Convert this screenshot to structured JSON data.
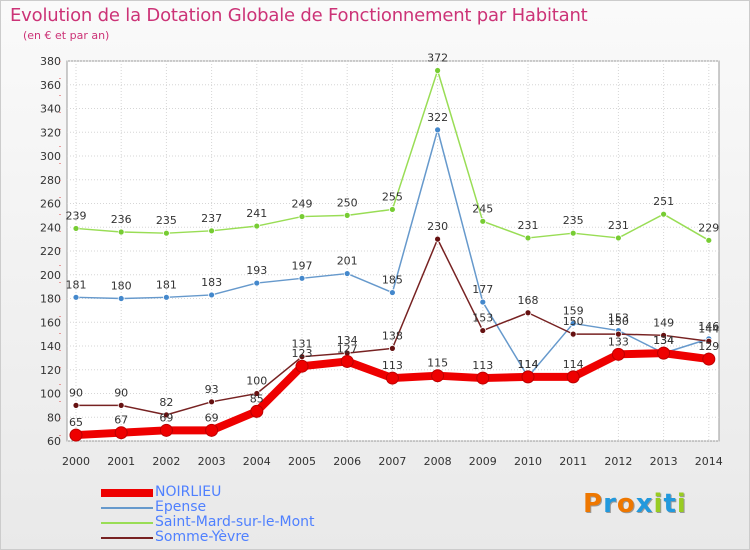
{
  "chart_data": {
    "type": "line",
    "title": "Evolution de la Dotation Globale de Fonctionnement par Habitant",
    "subtitle": "(en € et par an)",
    "xlabel": "",
    "ylabel": "",
    "ylim": [
      60,
      380
    ],
    "yticks": [
      60,
      80,
      100,
      120,
      140,
      160,
      180,
      200,
      220,
      240,
      260,
      280,
      300,
      320,
      340,
      360,
      380
    ],
    "x": [
      "2000",
      "2001",
      "2002",
      "2003",
      "2004",
      "2005",
      "2006",
      "2007",
      "2008",
      "2009",
      "2010",
      "2011",
      "2012",
      "2013",
      "2014"
    ],
    "grid": true,
    "legend_position": "bottom-left",
    "series": [
      {
        "name": "Saint-Mard-sur-le-Mont",
        "color": "#99dd55",
        "marker": "#77cc33",
        "values": [
          239,
          236,
          235,
          237,
          241,
          249,
          250,
          255,
          372,
          245,
          231,
          235,
          231,
          251,
          229
        ]
      },
      {
        "name": "Epense",
        "color": "#6699cc",
        "marker": "#4488cc",
        "values": [
          181,
          180,
          181,
          183,
          193,
          197,
          201,
          185,
          322,
          177,
          114,
          159,
          153,
          134,
          146
        ]
      },
      {
        "name": "Somme-Yèvre",
        "color": "#772222",
        "marker": "#661111",
        "values": [
          90,
          90,
          82,
          93,
          100,
          131,
          134,
          138,
          230,
          153,
          168,
          150,
          150,
          149,
          144
        ]
      },
      {
        "name": "NOIRLIEU",
        "color": "#ee0000",
        "marker": "#ee0000",
        "values": [
          65,
          67,
          69,
          69,
          85,
          123,
          127,
          113,
          115,
          113,
          114,
          114,
          133,
          134,
          129
        ]
      }
    ],
    "legend_order": [
      "NOIRLIEU",
      "Epense",
      "Saint-Mard-sur-le-Mont",
      "Somme-Yèvre"
    ]
  },
  "logo": {
    "text": "Proxiti",
    "letters": [
      {
        "ch": "P",
        "color": "#ee7700"
      },
      {
        "ch": "r",
        "color": "#2299dd"
      },
      {
        "ch": "o",
        "color": "#ee7700"
      },
      {
        "ch": "x",
        "color": "#2299dd"
      },
      {
        "ch": "i",
        "color": "#99cc22"
      },
      {
        "ch": "t",
        "color": "#2299dd"
      },
      {
        "ch": "i",
        "color": "#99cc22"
      }
    ]
  }
}
